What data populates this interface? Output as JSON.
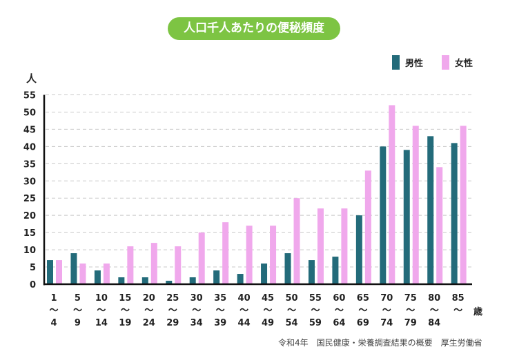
{
  "chart_data": {
    "type": "bar",
    "title": "人口千人あたりの便秘頻度",
    "ylabel": "人",
    "xlabel": "歳",
    "ylim": [
      0,
      55
    ],
    "yticks": [
      0,
      5,
      10,
      15,
      20,
      25,
      30,
      35,
      40,
      45,
      50,
      55
    ],
    "grid": true,
    "legend": "top-right",
    "categories": [
      {
        "start": "1",
        "end": "4"
      },
      {
        "start": "5",
        "end": "9"
      },
      {
        "start": "10",
        "end": "14"
      },
      {
        "start": "15",
        "end": "19"
      },
      {
        "start": "20",
        "end": "24"
      },
      {
        "start": "25",
        "end": "29"
      },
      {
        "start": "30",
        "end": "34"
      },
      {
        "start": "35",
        "end": "39"
      },
      {
        "start": "40",
        "end": "44"
      },
      {
        "start": "45",
        "end": "49"
      },
      {
        "start": "50",
        "end": "54"
      },
      {
        "start": "55",
        "end": "59"
      },
      {
        "start": "60",
        "end": "64"
      },
      {
        "start": "65",
        "end": "69"
      },
      {
        "start": "70",
        "end": "74"
      },
      {
        "start": "75",
        "end": "79"
      },
      {
        "start": "80",
        "end": "84"
      },
      {
        "start": "85",
        "end": ""
      }
    ],
    "range_mark": "～",
    "series": [
      {
        "name": "男性",
        "color": "#236b7a",
        "values": [
          7,
          9,
          4,
          2,
          2,
          1,
          2,
          4,
          3,
          6,
          9,
          7,
          8,
          20,
          40,
          39,
          43,
          41
        ]
      },
      {
        "name": "女性",
        "color": "#f0a8ec",
        "values": [
          7,
          6,
          6,
          11,
          12,
          11,
          15,
          18,
          17,
          17,
          25,
          22,
          22,
          33,
          52,
          46,
          34,
          46
        ]
      }
    ],
    "source": "令和4年　国民健康・栄養調査結果の概要　厚生労働省"
  }
}
